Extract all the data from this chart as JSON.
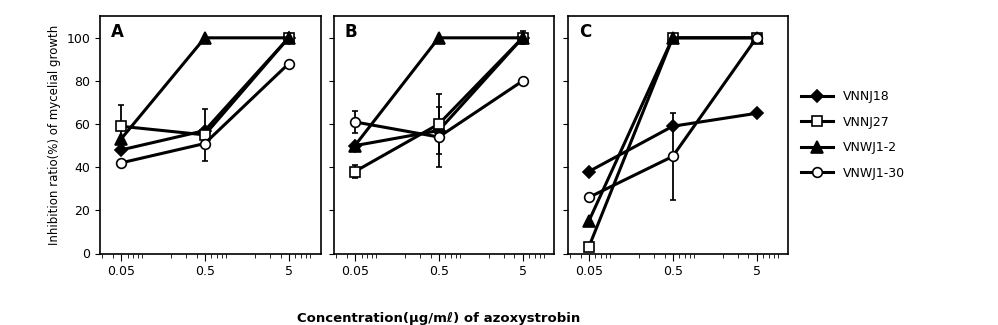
{
  "x": [
    0.05,
    0.5,
    5
  ],
  "panels": [
    "A",
    "B",
    "C"
  ],
  "series": [
    {
      "label": "VNNJ18",
      "marker": "D",
      "fillstyle": "full",
      "A": {
        "y": [
          48,
          57,
          100
        ],
        "yerr": [
          0,
          0,
          0
        ]
      },
      "B": {
        "y": [
          50,
          57,
          100
        ],
        "yerr": [
          0,
          0,
          0
        ]
      },
      "C": {
        "y": [
          38,
          59,
          65
        ],
        "yerr": [
          0,
          0,
          0
        ]
      }
    },
    {
      "label": "VNNJ27",
      "marker": "s",
      "fillstyle": "none",
      "A": {
        "y": [
          59,
          55,
          100
        ],
        "yerr": [
          10,
          12,
          0
        ]
      },
      "B": {
        "y": [
          38,
          60,
          100
        ],
        "yerr": [
          3,
          14,
          3
        ]
      },
      "C": {
        "y": [
          3,
          100,
          100
        ],
        "yerr": [
          0,
          0,
          0
        ]
      }
    },
    {
      "label": "VNWJ1-2",
      "marker": "^",
      "fillstyle": "full",
      "A": {
        "y": [
          53,
          100,
          100
        ],
        "yerr": [
          0,
          0,
          0
        ]
      },
      "B": {
        "y": [
          50,
          100,
          100
        ],
        "yerr": [
          0,
          0,
          0
        ]
      },
      "C": {
        "y": [
          15,
          100,
          100
        ],
        "yerr": [
          0,
          0,
          0
        ]
      }
    },
    {
      "label": "VNWJ1-30",
      "marker": "o",
      "fillstyle": "none",
      "A": {
        "y": [
          42,
          51,
          88
        ],
        "yerr": [
          0,
          0,
          0
        ]
      },
      "B": {
        "y": [
          61,
          54,
          80
        ],
        "yerr": [
          5,
          14,
          0
        ]
      },
      "C": {
        "y": [
          26,
          45,
          100
        ],
        "yerr": [
          0,
          20,
          0
        ]
      }
    }
  ],
  "ylabel": "Inhibition ratio(%) of mycelial growth",
  "xlabel": "Concentration(µg/mℓ) of azoxystrobin",
  "ylim": [
    0,
    110
  ],
  "yticks": [
    0,
    20,
    40,
    60,
    80,
    100
  ],
  "background_color": "white",
  "linewidth": 2.2,
  "markersize": 7,
  "legend_labels": [
    "VNNJ18",
    "VNNJ27",
    "VNWJ1-2",
    "VNWJ1-30"
  ]
}
